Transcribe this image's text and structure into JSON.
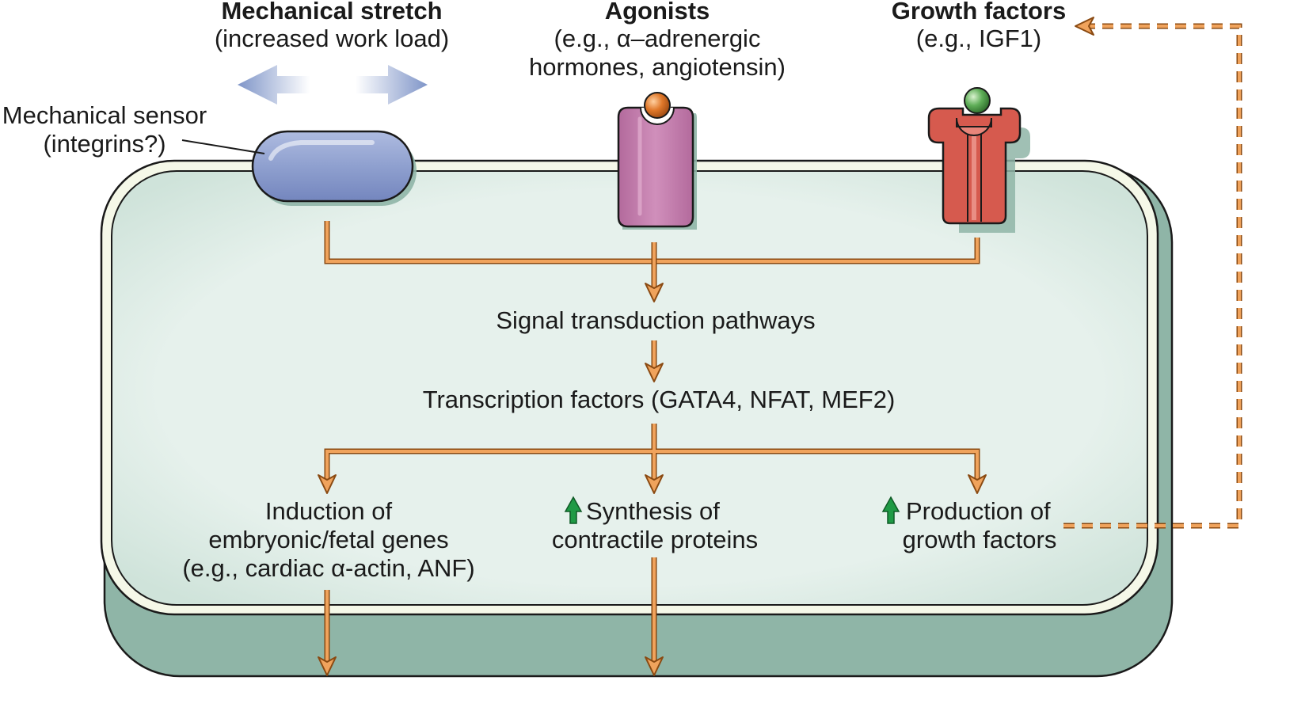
{
  "inputs": {
    "mechanical": {
      "title": "Mechanical stretch",
      "subtitle": "(increased work load)"
    },
    "agonists": {
      "title": "Agonists",
      "line1": "(e.g., α–adrenergic",
      "line2": "hormones, angiotensin)"
    },
    "growth": {
      "title": "Growth factors",
      "subtitle": "(e.g., IGF1)"
    }
  },
  "sensor_label": {
    "line1": "Mechanical sensor",
    "line2": "(integrins?)"
  },
  "pathway": {
    "signal": "Signal transduction pathways",
    "transcription": "Transcription factors (GATA4, NFAT, MEF2)"
  },
  "outcomes": {
    "induction": {
      "line1": "Induction of",
      "line2": "embryonic/fetal genes",
      "line3": "(e.g., cardiac α-actin, ANF)"
    },
    "synthesis": {
      "line1": "Synthesis of",
      "line2": "contractile proteins"
    },
    "production": {
      "line1": "Production of",
      "line2": "growth factors"
    }
  },
  "colors": {
    "arrow": "#f0a35c",
    "arrow_outline": "#8a4a12",
    "cell_fill": "#e3efe9",
    "cell_shadow": "#8fb5a7",
    "cell_membrane": "#f5f8e8",
    "sensor": "#8fa0cf",
    "agonist_receptor": "#c17aaa",
    "agonist_ligand": "#e0782a",
    "gf_receptor": "#d65a4e",
    "gf_ligand": "#5fae58",
    "up_arrow": "#1f9a45"
  },
  "icons": {
    "stretch": "double-headed-arrow-icon",
    "up": "up-arrow-icon"
  }
}
